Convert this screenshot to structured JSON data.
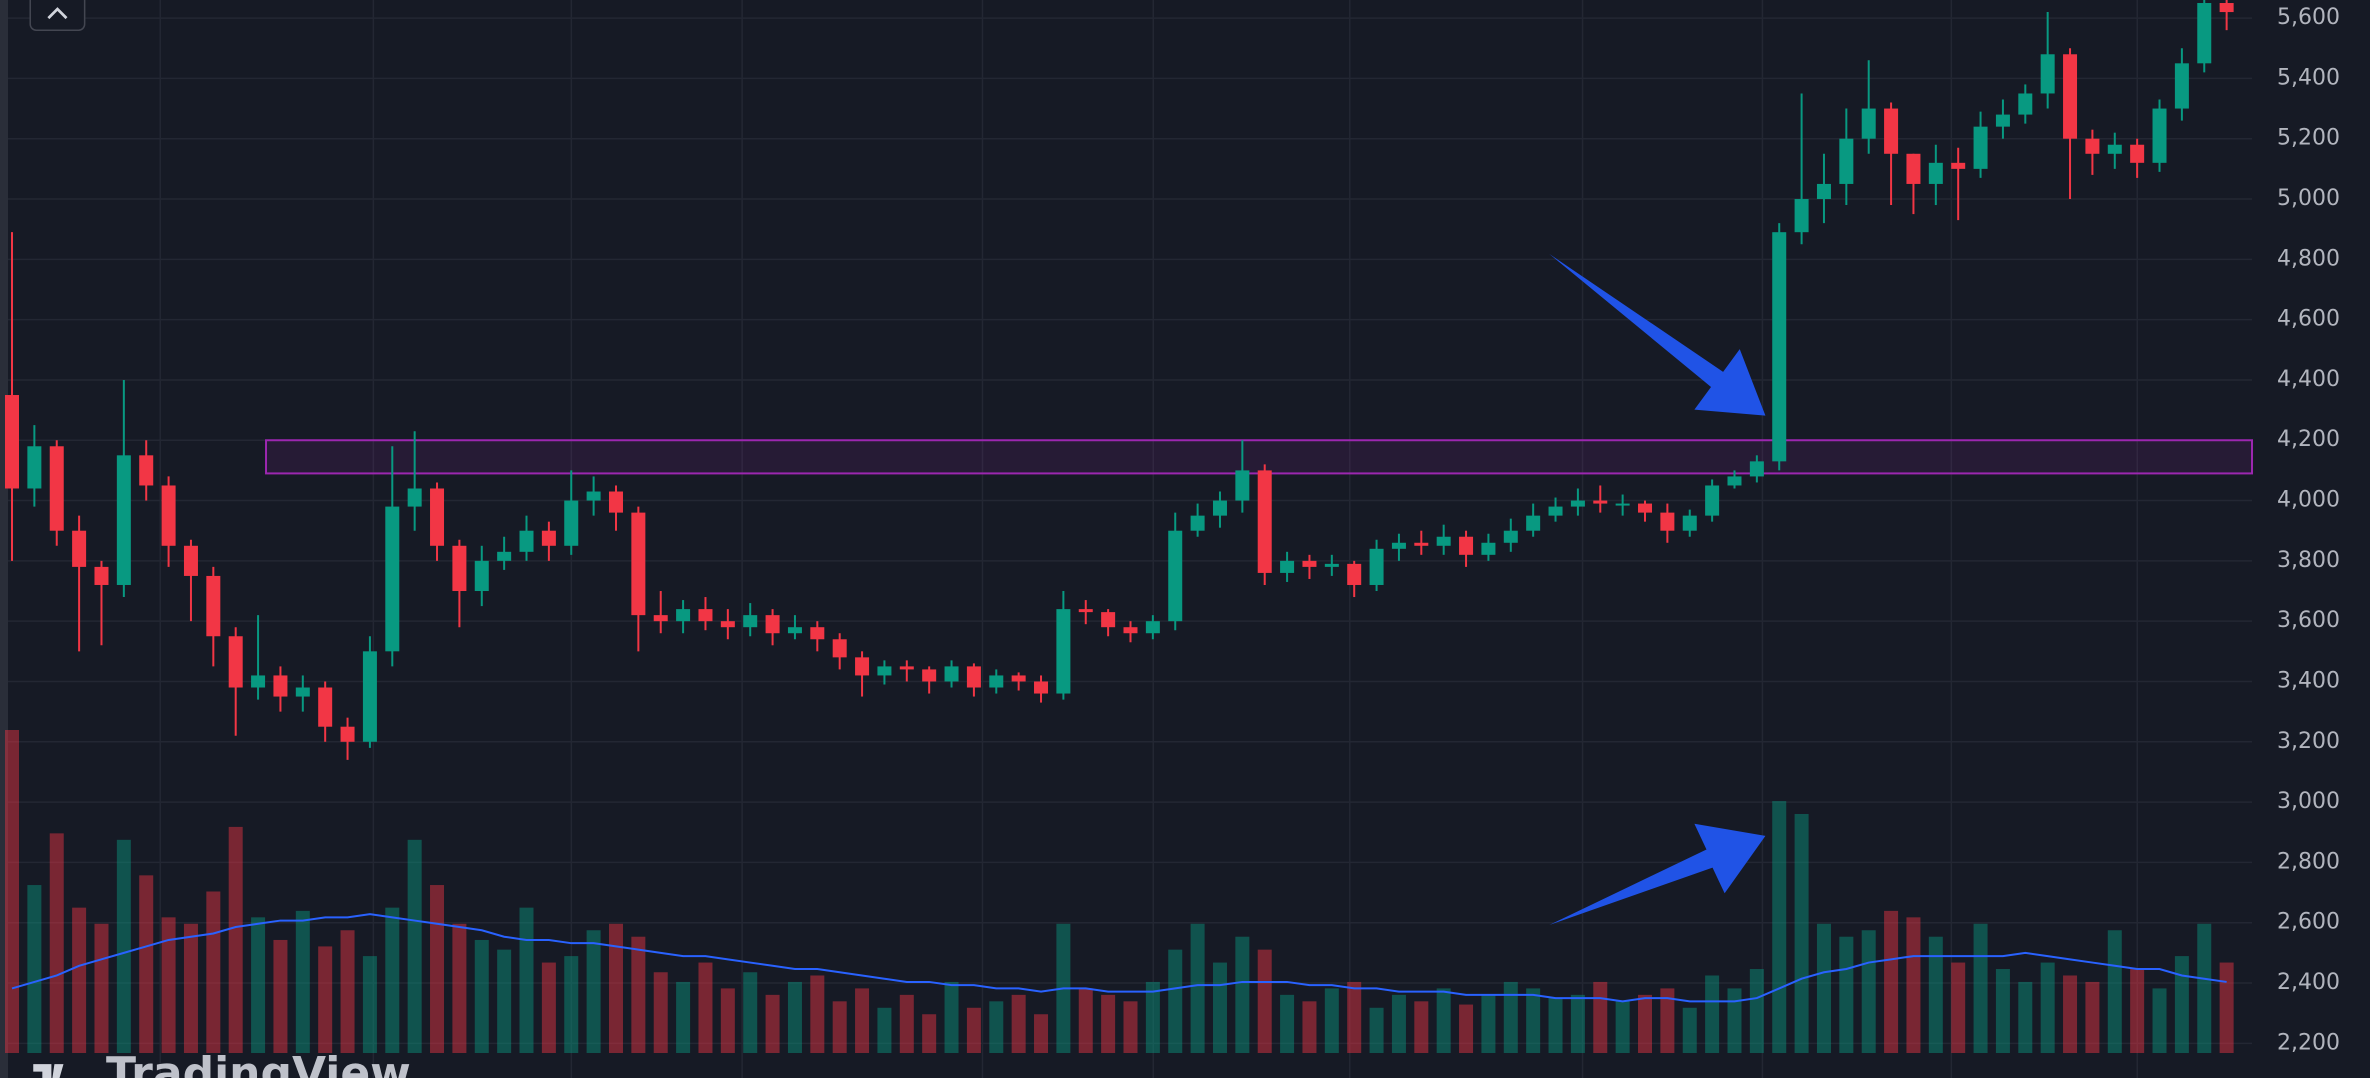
{
  "chart_data": {
    "type": "candlestick",
    "ylim": [
      2085,
      5660
    ],
    "yticks": [
      {
        "value": 2200,
        "label": "2,200"
      },
      {
        "value": 2400,
        "label": "2,400"
      },
      {
        "value": 2600,
        "label": "2,600"
      },
      {
        "value": 2800,
        "label": "2,800"
      },
      {
        "value": 3000,
        "label": "3,000"
      },
      {
        "value": 3200,
        "label": "3,200"
      },
      {
        "value": 3400,
        "label": "3,400"
      },
      {
        "value": 3600,
        "label": "3,600"
      },
      {
        "value": 3800,
        "label": "3,800"
      },
      {
        "value": 4000,
        "label": "4,000"
      },
      {
        "value": 4200,
        "label": "4,200"
      },
      {
        "value": 4400,
        "label": "4,400"
      },
      {
        "value": 4600,
        "label": "4,600"
      },
      {
        "value": 4800,
        "label": "4,800"
      },
      {
        "value": 5000,
        "label": "5,000"
      },
      {
        "value": 5200,
        "label": "5,200"
      },
      {
        "value": 5400,
        "label": "5,400"
      },
      {
        "value": 5600,
        "label": "5,600"
      }
    ],
    "grid": true,
    "up_color": "#089981",
    "down_color": "#f23645",
    "ma_color": "#2962ff",
    "zone_color": "#9c27b0",
    "zone": [
      4090,
      4200
    ],
    "watermark": "TradingView",
    "open": [
      4350,
      4040,
      4180,
      3900,
      3780,
      3720,
      4150,
      4050,
      3850,
      3750,
      3550,
      3380,
      3420,
      3350,
      3380,
      3250,
      3200,
      3500,
      3980,
      4040,
      3850,
      3700,
      3800,
      3830,
      3900,
      3850,
      4000,
      4030,
      3960,
      3620,
      3600,
      3640,
      3600,
      3580,
      3620,
      3560,
      3580,
      3540,
      3480,
      3420,
      3450,
      3440,
      3400,
      3450,
      3380,
      3420,
      3400,
      3360,
      3640,
      3630,
      3580,
      3560,
      3600,
      3900,
      3950,
      4000,
      4100,
      3760,
      3800,
      3780,
      3790,
      3720,
      3840,
      3860,
      3850,
      3880,
      3820,
      3860,
      3900,
      3950,
      3980,
      4000,
      3990,
      3990,
      3960,
      3900,
      3950,
      4050,
      4080,
      4130,
      4890,
      5000,
      5050,
      5200,
      5300,
      5150,
      5050,
      5120,
      5100,
      5240,
      5280,
      5350,
      5480,
      5200,
      5150,
      5180,
      5120,
      5300,
      5450,
      5650
    ],
    "high": [
      4890,
      4250,
      4200,
      3950,
      3800,
      4400,
      4200,
      4080,
      3870,
      3780,
      3580,
      3620,
      3450,
      3420,
      3400,
      3280,
      3550,
      4180,
      4230,
      4060,
      3870,
      3850,
      3880,
      3950,
      3930,
      4100,
      4080,
      4050,
      3980,
      3700,
      3670,
      3680,
      3640,
      3660,
      3640,
      3620,
      3600,
      3560,
      3500,
      3470,
      3470,
      3450,
      3470,
      3460,
      3440,
      3430,
      3420,
      3700,
      3670,
      3640,
      3600,
      3620,
      3960,
      3990,
      4030,
      4200,
      4120,
      3830,
      3820,
      3820,
      3800,
      3870,
      3890,
      3900,
      3920,
      3900,
      3890,
      3940,
      3990,
      4010,
      4040,
      4050,
      4020,
      4000,
      3990,
      3970,
      4070,
      4100,
      4150,
      4920,
      5350,
      5150,
      5300,
      5460,
      5320,
      5150,
      5180,
      5170,
      5290,
      5330,
      5380,
      5620,
      5500,
      5230,
      5220,
      5200,
      5330,
      5500,
      5680,
      5680
    ],
    "low": [
      3800,
      3980,
      3850,
      3500,
      3520,
      3680,
      4000,
      3780,
      3600,
      3450,
      3220,
      3340,
      3300,
      3300,
      3200,
      3140,
      3180,
      3450,
      3900,
      3800,
      3580,
      3650,
      3770,
      3800,
      3800,
      3820,
      3950,
      3900,
      3500,
      3560,
      3560,
      3570,
      3540,
      3550,
      3520,
      3540,
      3500,
      3440,
      3350,
      3390,
      3400,
      3360,
      3380,
      3350,
      3360,
      3370,
      3330,
      3340,
      3590,
      3550,
      3530,
      3540,
      3570,
      3880,
      3910,
      3960,
      3720,
      3730,
      3740,
      3750,
      3680,
      3700,
      3800,
      3820,
      3820,
      3780,
      3800,
      3830,
      3880,
      3930,
      3950,
      3960,
      3950,
      3930,
      3860,
      3880,
      3930,
      4040,
      4060,
      4100,
      4850,
      4920,
      4980,
      5150,
      4980,
      4950,
      4980,
      4930,
      5070,
      5200,
      5250,
      5300,
      5000,
      5080,
      5100,
      5070,
      5090,
      5260,
      5420,
      5560
    ],
    "close": [
      4040,
      4180,
      3900,
      3780,
      3720,
      4150,
      4050,
      3850,
      3750,
      3550,
      3380,
      3420,
      3350,
      3380,
      3250,
      3200,
      3500,
      3980,
      4040,
      3850,
      3700,
      3800,
      3830,
      3900,
      3850,
      4000,
      4030,
      3960,
      3620,
      3600,
      3640,
      3600,
      3580,
      3620,
      3560,
      3580,
      3540,
      3480,
      3420,
      3450,
      3440,
      3400,
      3450,
      3380,
      3420,
      3400,
      3360,
      3640,
      3630,
      3580,
      3560,
      3600,
      3900,
      3950,
      4000,
      4100,
      3760,
      3800,
      3780,
      3790,
      3720,
      3840,
      3860,
      3850,
      3880,
      3820,
      3860,
      3900,
      3950,
      3980,
      4000,
      3990,
      3990,
      3960,
      3900,
      3950,
      4050,
      4080,
      4130,
      4890,
      5000,
      5050,
      5200,
      5300,
      5150,
      5050,
      5120,
      5100,
      5240,
      5280,
      5350,
      5480,
      5200,
      5150,
      5180,
      5120,
      5300,
      5450,
      5650,
      5620
    ],
    "volume": [
      100,
      52,
      68,
      45,
      40,
      66,
      55,
      42,
      40,
      50,
      70,
      42,
      35,
      44,
      33,
      38,
      30,
      45,
      66,
      52,
      40,
      35,
      32,
      45,
      28,
      30,
      38,
      40,
      36,
      25,
      22,
      28,
      20,
      25,
      18,
      22,
      24,
      16,
      20,
      14,
      18,
      12,
      22,
      14,
      16,
      18,
      12,
      40,
      20,
      18,
      16,
      22,
      32,
      40,
      28,
      36,
      32,
      18,
      16,
      20,
      22,
      14,
      18,
      16,
      20,
      15,
      18,
      22,
      20,
      17,
      18,
      22,
      16,
      18,
      20,
      14,
      24,
      20,
      26,
      78,
      74,
      40,
      36,
      38,
      44,
      42,
      36,
      28,
      40,
      26,
      22,
      28,
      24,
      22,
      38,
      26,
      20,
      30,
      40,
      28
    ],
    "volume_ma": [
      20,
      22,
      24,
      27,
      29,
      31,
      33,
      35,
      36,
      37,
      39,
      40,
      41,
      41,
      42,
      42,
      43,
      42,
      41,
      40,
      39,
      38,
      36,
      35,
      35,
      34,
      34,
      33,
      32,
      31,
      30,
      30,
      29,
      28,
      27,
      26,
      26,
      25,
      24,
      23,
      22,
      22,
      21,
      21,
      20,
      20,
      19,
      20,
      20,
      19,
      19,
      19,
      20,
      21,
      21,
      22,
      22,
      22,
      21,
      21,
      20,
      20,
      19,
      19,
      19,
      18,
      18,
      18,
      18,
      17,
      17,
      17,
      16,
      17,
      17,
      16,
      16,
      16,
      17,
      20,
      23,
      25,
      26,
      28,
      29,
      30,
      30,
      30,
      30,
      30,
      31,
      30,
      29,
      28,
      27,
      26,
      26,
      24,
      23,
      22
    ]
  }
}
